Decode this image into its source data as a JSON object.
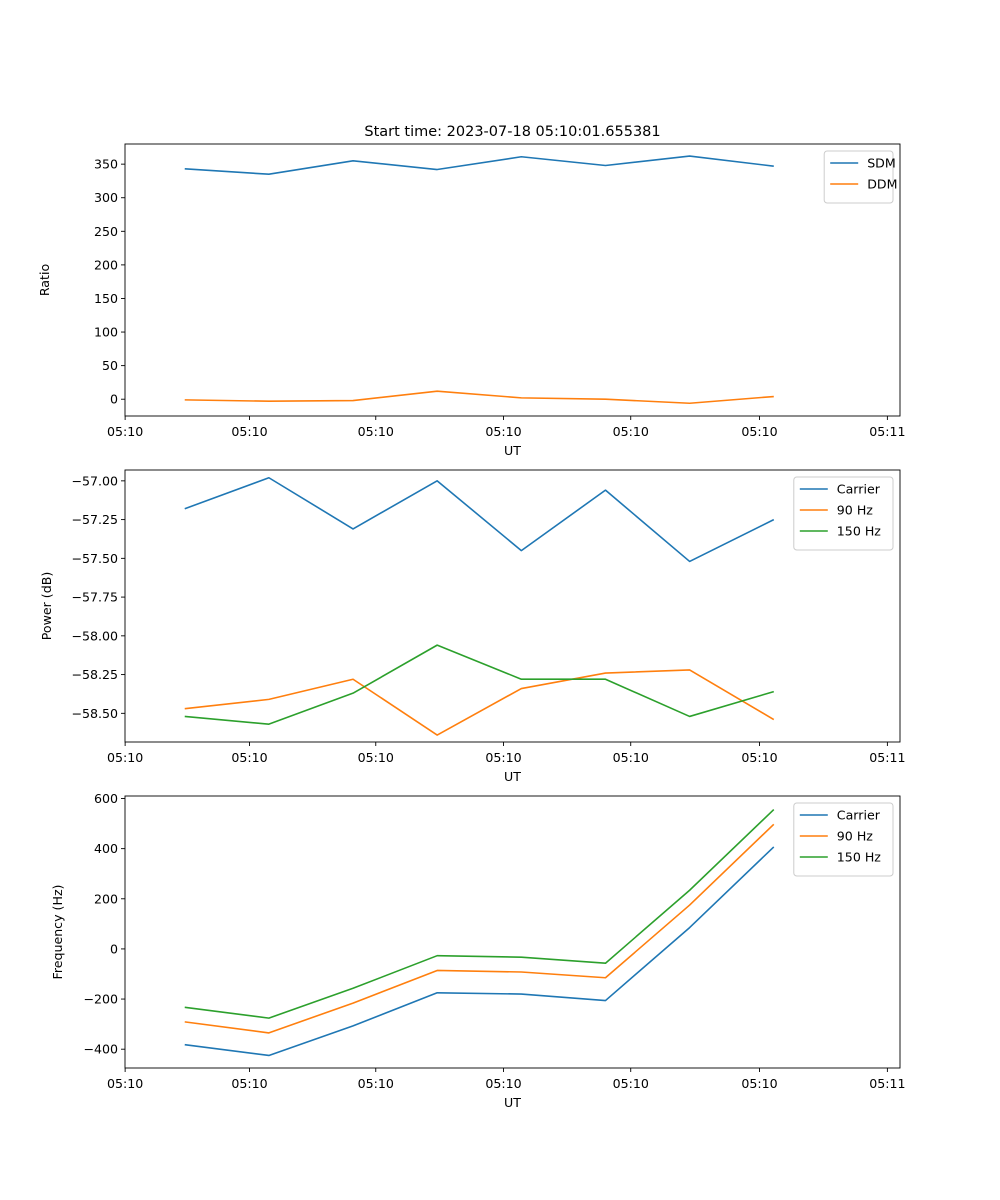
{
  "chart_data": [
    {
      "type": "line",
      "title": "Start time: 2023-07-18 05:10:01.655381",
      "xlabel": "UT",
      "ylabel": "Ratio",
      "x_tick_labels": [
        "05:10",
        "05:10",
        "05:10",
        "05:10",
        "05:10",
        "05:10",
        "05:11"
      ],
      "x": [
        1,
        2,
        3,
        4,
        5,
        6,
        7,
        8
      ],
      "xlim": [
        0.29,
        9.5
      ],
      "ylim": [
        -25,
        380
      ],
      "yticks": [
        0,
        50,
        100,
        150,
        200,
        250,
        300,
        350
      ],
      "ytick_labels": [
        "0",
        "50",
        "100",
        "150",
        "200",
        "250",
        "300",
        "350"
      ],
      "grid": false,
      "legend": "top-right",
      "series": [
        {
          "name": "SDM",
          "color": "#1f77b4",
          "values": [
            343,
            335,
            355,
            342,
            361,
            348,
            362,
            347
          ]
        },
        {
          "name": "DDM",
          "color": "#ff7f0e",
          "values": [
            -1,
            -3,
            -2,
            12,
            2,
            0,
            -6,
            4
          ]
        }
      ]
    },
    {
      "type": "line",
      "title": "",
      "xlabel": "UT",
      "ylabel": "Power (dB)",
      "x_tick_labels": [
        "05:10",
        "05:10",
        "05:10",
        "05:10",
        "05:10",
        "05:10",
        "05:11"
      ],
      "x": [
        1,
        2,
        3,
        4,
        5,
        6,
        7,
        8
      ],
      "xlim": [
        0.29,
        9.5
      ],
      "ylim": [
        -58.685,
        -56.93
      ],
      "yticks": [
        -58.5,
        -58.25,
        -58.0,
        -57.75,
        -57.5,
        -57.25,
        -57.0
      ],
      "ytick_labels": [
        "−58.50",
        "−58.25",
        "−58.00",
        "−57.75",
        "−57.50",
        "−57.25",
        "−57.00"
      ],
      "grid": false,
      "legend": "top-right",
      "series": [
        {
          "name": "Carrier",
          "color": "#1f77b4",
          "values": [
            -57.18,
            -56.98,
            -57.31,
            -57.0,
            -57.45,
            -57.06,
            -57.52,
            -57.25
          ]
        },
        {
          "name": "90 Hz",
          "color": "#ff7f0e",
          "values": [
            -58.47,
            -58.41,
            -58.28,
            -58.64,
            -58.34,
            -58.24,
            -58.22,
            -58.54
          ]
        },
        {
          "name": "150 Hz",
          "color": "#2ca02c",
          "values": [
            -58.52,
            -58.57,
            -58.37,
            -58.06,
            -58.28,
            -58.28,
            -58.52,
            -58.36
          ]
        }
      ]
    },
    {
      "type": "line",
      "title": "",
      "xlabel": "UT",
      "ylabel": "Frequency (Hz)",
      "x_tick_labels": [
        "05:10",
        "05:10",
        "05:10",
        "05:10",
        "05:10",
        "05:10",
        "05:11"
      ],
      "x": [
        1,
        2,
        3,
        4,
        5,
        6,
        7,
        8
      ],
      "xlim": [
        0.29,
        9.5
      ],
      "ylim": [
        -475,
        610
      ],
      "yticks": [
        -400,
        -200,
        0,
        200,
        400,
        600
      ],
      "ytick_labels": [
        "−400",
        "−200",
        "0",
        "200",
        "400",
        "600"
      ],
      "grid": false,
      "legend": "top-right",
      "series": [
        {
          "name": "Carrier",
          "color": "#1f77b4",
          "values": [
            -382,
            -425,
            -307,
            -175,
            -180,
            -206,
            85,
            407
          ]
        },
        {
          "name": "90 Hz",
          "color": "#ff7f0e",
          "values": [
            -291,
            -335,
            -216,
            -86,
            -92,
            -115,
            175,
            497
          ]
        },
        {
          "name": "150 Hz",
          "color": "#2ca02c",
          "values": [
            -233,
            -276,
            -157,
            -27,
            -33,
            -57,
            234,
            556
          ]
        }
      ]
    }
  ]
}
